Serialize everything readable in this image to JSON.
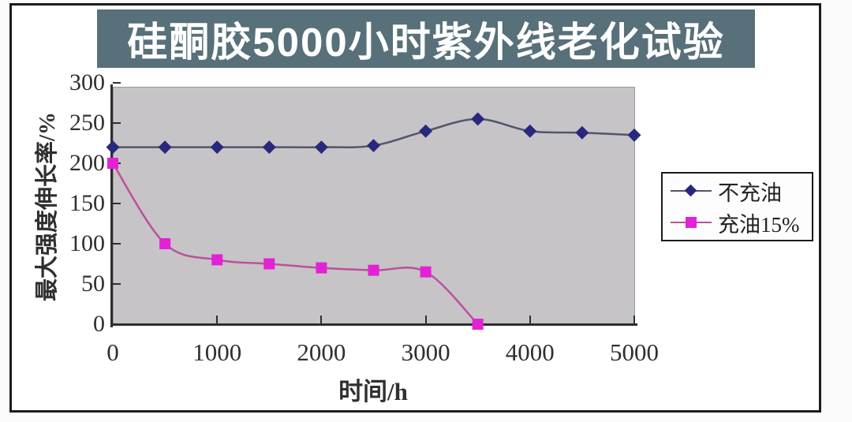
{
  "title": {
    "text": "硅酮胶5000小时紫外线老化试验",
    "bg_color": "#577079",
    "text_color": "#ffffff"
  },
  "chart_data": {
    "type": "line",
    "title": "硅酮胶5000小时紫外线老化试验",
    "xlabel": "时间/h",
    "ylabel": "最大强度伸长率/%",
    "xlim": [
      0,
      5000
    ],
    "ylim": [
      0,
      300
    ],
    "x_ticks": [
      0,
      1000,
      2000,
      3000,
      4000,
      5000
    ],
    "y_ticks": [
      0,
      50,
      100,
      150,
      200,
      250,
      300
    ],
    "grid": false,
    "plot_bg_color": "#c6c4c7",
    "legend_position": "right",
    "series": [
      {
        "name": "不充油",
        "marker": "diamond",
        "marker_color": "#28287d",
        "line_color": "#54546a",
        "x": [
          0,
          500,
          1000,
          1500,
          2000,
          2500,
          3000,
          3500,
          4000,
          4500,
          5000
        ],
        "y": [
          220,
          220,
          220,
          220,
          220,
          222,
          240,
          255,
          240,
          238,
          235
        ]
      },
      {
        "name": "充油15%",
        "marker": "square",
        "marker_color": "#e322d6",
        "line_color": "#bd4f9b",
        "x": [
          0,
          500,
          1000,
          1500,
          2000,
          2500,
          3000,
          3500
        ],
        "y": [
          200,
          100,
          80,
          75,
          70,
          67,
          65,
          0
        ]
      }
    ]
  }
}
